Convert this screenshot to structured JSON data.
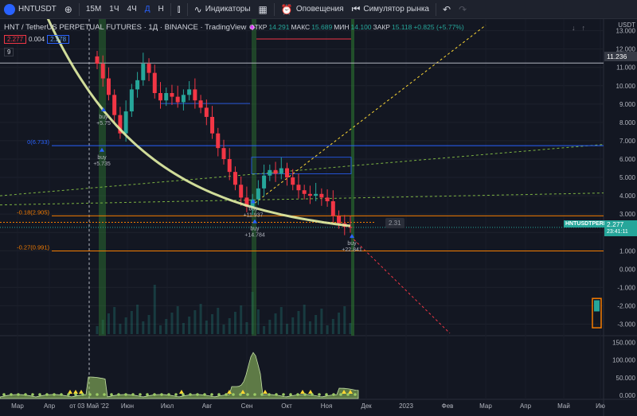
{
  "toolbar": {
    "symbol": "HNTUSDT",
    "intervals": [
      "15M",
      "1Ч",
      "4Ч",
      "Д",
      "Н"
    ],
    "active_interval": "Д",
    "indicators_label": "Индикаторы",
    "alerts_label": "Оповещения",
    "replay_label": "Симулятор рынка"
  },
  "legend": {
    "title": "HNT / TetherUS PERPETUAL FUTURES · 1Д · BINANCE · TradingView",
    "open_label": "ОТКР",
    "open_value": "14.291",
    "high_label": "МАКС",
    "high_value": "15.689",
    "low_label": "МИН",
    "low_value": "14.100",
    "close_label": "ЗАКР",
    "close_value": "15.118",
    "change_value": "+0.825 (+5.77%)"
  },
  "indicator_row": {
    "value_a": "2.277",
    "value_b": "0.004",
    "value_c": "2.278",
    "row2": "9"
  },
  "price_labels": {
    "currency": "USDT",
    "ticker_tag": "HNTUSDTPERP",
    "last_price": "2.277",
    "countdown": "23:41:11",
    "marked_price": "11.236",
    "crosshair_value": "2.31"
  },
  "right_icons": {
    "down": "↓",
    "up": "↑"
  },
  "chart_data": {
    "type": "candlestick",
    "y_axis_ticks": [
      "13.000",
      "12.000",
      "11.000",
      "10.000",
      "9.000",
      "8.000",
      "7.000",
      "6.000",
      "5.000",
      "4.000",
      "3.000",
      "2.000",
      "1.000",
      "0.000",
      "-1.000",
      "-2.000",
      "-3.000"
    ],
    "ylim": [
      -3.5,
      13.2
    ],
    "volume_ticks": [
      "150.000",
      "100.000",
      "50.000",
      "0.000"
    ],
    "x_axis_labels": [
      "Мар",
      "Апр",
      "от 03 Май '22",
      "Июн",
      "Июл",
      "Авг",
      "Сен",
      "Окт",
      "Ноя",
      "Дек",
      "2023",
      "Фев",
      "Мар",
      "Апр",
      "Май",
      "Ию"
    ],
    "fib_levels": [
      {
        "label": "0(6.733)",
        "value": 6.733,
        "color": "#2962ff"
      },
      {
        "label": "-0.18(2.905)",
        "value": 2.905,
        "color": "#f57c00"
      },
      {
        "label": "-0.27(0.991)",
        "value": 0.991,
        "color": "#f57c00"
      }
    ],
    "signals": [
      {
        "label": "buy",
        "value": "+5.75"
      },
      {
        "label": "buy",
        "value": "+5.735"
      },
      {
        "label": "buy",
        "value": "+11.937"
      },
      {
        "label": "buy",
        "value": "+14.784"
      },
      {
        "label": "buy",
        "value": "+22.841"
      }
    ],
    "approx_close_path": [
      11.2,
      10.4,
      9.5,
      8.4,
      7.4,
      8.6,
      9.8,
      10.3,
      11.2,
      10.7,
      9.6,
      9.2,
      9.6,
      9.4,
      9.1,
      9.5,
      9.8,
      9.2,
      8.8,
      8.3,
      7.4,
      6.6,
      6.0,
      5.3,
      4.6,
      3.9,
      3.4,
      3.8,
      4.4,
      5.1,
      5.4,
      5.2,
      5.5,
      5.0,
      4.6,
      4.3,
      4.1,
      4.0,
      4.1,
      3.9,
      3.7,
      2.9,
      2.5,
      2.3,
      2.28
    ]
  }
}
